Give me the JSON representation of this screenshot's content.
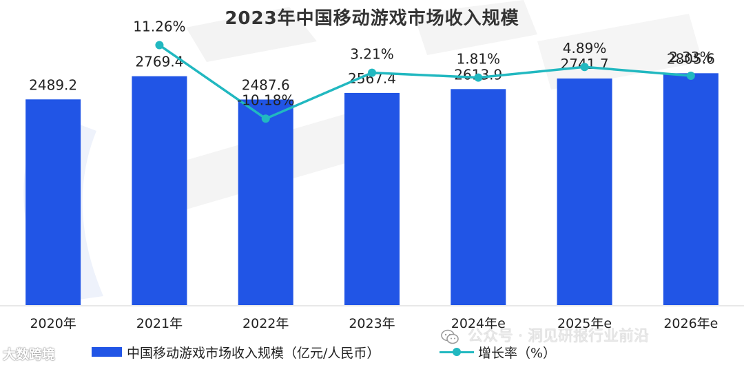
{
  "chart_data": {
    "type": "bar",
    "title": "2023年中国移动游戏市场收入规模",
    "categories": [
      "2020年",
      "2021年",
      "2022年",
      "2023年",
      "2024年e",
      "2025年e",
      "2026年e"
    ],
    "series": [
      {
        "name": "中国移动游戏市场收入规模（亿元/人民币）",
        "type": "bar",
        "values": [
          2489.2,
          2769.4,
          2487.6,
          2567.4,
          2613.9,
          2741.7,
          2805.6
        ],
        "labels": [
          "2489.2",
          "2769.4",
          "2487.6",
          "2567.4",
          "2613.9",
          "2741.7",
          "2805.6"
        ],
        "color": "#2155e6"
      },
      {
        "name": "增长率（%）",
        "type": "line",
        "x": [
          "2021年",
          "2022年",
          "2023年",
          "2024年e",
          "2025年e",
          "2026年e"
        ],
        "values": [
          11.26,
          -10.18,
          3.21,
          1.81,
          4.89,
          2.33
        ],
        "labels": [
          "11.26%",
          "-10.18%",
          "3.21%",
          "1.81%",
          "4.89%",
          "2.33%"
        ],
        "color": "#21b8c0"
      }
    ],
    "ylim_bar": [
      0,
      3000
    ],
    "ylim_rate": [
      -80,
      20
    ],
    "legend_position": "bottom",
    "grid": false
  },
  "watermarks": {
    "left": "大数跨境",
    "right": "公众号 · 洞见研报行业前沿"
  }
}
